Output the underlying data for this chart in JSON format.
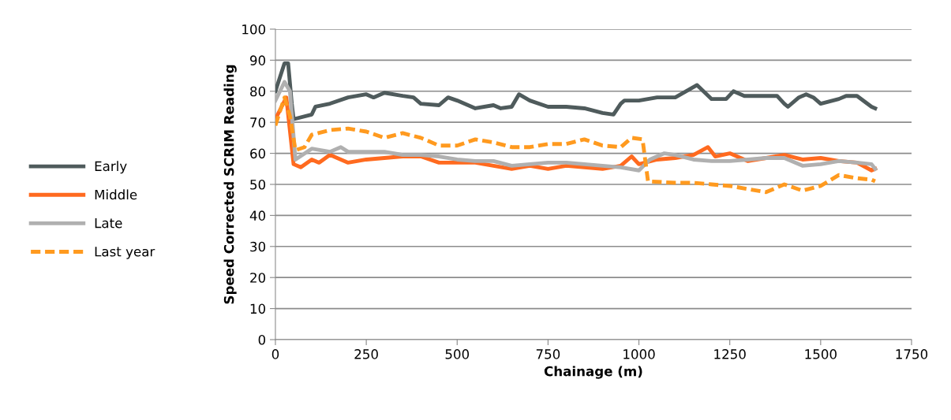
{
  "chart_data": {
    "type": "line",
    "xlabel": "Chainage (m)",
    "ylabel": "Speed Corrected SCRIM Reading",
    "xlim": [
      0,
      1750
    ],
    "xticks": [
      0,
      250,
      500,
      750,
      1000,
      1250,
      1500,
      1750
    ],
    "ylim": [
      0,
      100
    ],
    "yticks": [
      0,
      10,
      20,
      30,
      40,
      50,
      60,
      70,
      80,
      90,
      100
    ],
    "grid": "y",
    "legend": "left",
    "marker": "none",
    "series": [
      {
        "name": "Early",
        "color": "#4f5b5c",
        "line_style": "solid",
        "x": [
          0,
          25,
          35,
          45,
          50,
          100,
          110,
          150,
          200,
          250,
          270,
          300,
          350,
          380,
          400,
          450,
          475,
          500,
          550,
          600,
          620,
          650,
          670,
          700,
          750,
          800,
          850,
          900,
          930,
          950,
          960,
          1000,
          1050,
          1080,
          1100,
          1160,
          1200,
          1240,
          1260,
          1290,
          1380,
          1400,
          1410,
          1440,
          1460,
          1480,
          1500,
          1550,
          1570,
          1600,
          1640,
          1650
        ],
        "values": [
          80,
          89,
          89,
          76,
          71,
          72.5,
          75,
          76,
          78,
          79,
          78,
          79.5,
          78.5,
          78,
          76,
          75.5,
          78,
          77,
          74.5,
          75.5,
          74.5,
          75,
          79,
          77,
          75,
          75,
          74.5,
          73,
          72.5,
          76,
          77,
          77,
          78,
          78,
          78,
          82,
          77.5,
          77.5,
          80,
          78.5,
          78.5,
          76,
          75,
          78,
          79,
          78,
          76,
          77.5,
          78.5,
          78.5,
          75,
          74.5
        ]
      },
      {
        "name": "Middle",
        "color": "#ff6a1f",
        "line_style": "solid",
        "x": [
          0,
          30,
          50,
          70,
          100,
          120,
          150,
          200,
          250,
          300,
          350,
          400,
          450,
          500,
          550,
          600,
          650,
          700,
          750,
          800,
          850,
          900,
          950,
          980,
          1000,
          1050,
          1100,
          1150,
          1190,
          1210,
          1250,
          1300,
          1350,
          1400,
          1450,
          1500,
          1550,
          1600,
          1640,
          1650
        ],
        "values": [
          71,
          78,
          56.5,
          55.5,
          58,
          57,
          59.5,
          57,
          58,
          58.5,
          59,
          59,
          57,
          57,
          57,
          56,
          55,
          56,
          55,
          56,
          55.5,
          55,
          56,
          59,
          56.5,
          58,
          58.5,
          59.5,
          62,
          59,
          60,
          57.5,
          58.5,
          59.5,
          58,
          58.5,
          57.5,
          57,
          54.5,
          55
        ]
      },
      {
        "name": "Late",
        "color": "#b0b0b0",
        "line_style": "solid",
        "x": [
          0,
          25,
          40,
          55,
          100,
          150,
          180,
          200,
          250,
          300,
          350,
          400,
          450,
          500,
          550,
          600,
          650,
          700,
          750,
          800,
          850,
          900,
          950,
          1000,
          1030,
          1070,
          1100,
          1150,
          1200,
          1250,
          1300,
          1350,
          1400,
          1450,
          1500,
          1550,
          1600,
          1640,
          1650
        ],
        "values": [
          77,
          83,
          80,
          58,
          61.5,
          60.5,
          62,
          60.5,
          60.5,
          60.5,
          59.5,
          59.5,
          59,
          58,
          57.5,
          57.5,
          56,
          56.5,
          57,
          57,
          56.5,
          56,
          55.5,
          54.5,
          58,
          60,
          59.5,
          58,
          57.5,
          57.5,
          58,
          58.5,
          58.5,
          56,
          56.5,
          57.5,
          57,
          56.5,
          55
        ]
      },
      {
        "name": "Last year",
        "color": "#ff9a1f",
        "line_style": "dashed",
        "x": [
          0,
          25,
          40,
          55,
          80,
          100,
          150,
          200,
          250,
          300,
          350,
          400,
          450,
          500,
          550,
          600,
          650,
          700,
          750,
          800,
          850,
          900,
          950,
          980,
          1010,
          1025,
          1100,
          1150,
          1200,
          1250,
          1300,
          1350,
          1400,
          1450,
          1500,
          1550,
          1600,
          1640,
          1650
        ],
        "values": [
          69,
          78,
          72,
          61,
          62,
          66,
          67.5,
          68,
          67,
          65,
          66.5,
          65,
          62.5,
          62.5,
          64.5,
          63.5,
          62,
          62,
          63,
          63,
          64.5,
          62.5,
          62,
          65,
          64.5,
          51,
          50.5,
          50.5,
          50,
          49.5,
          48.5,
          47.5,
          50,
          48,
          49.5,
          53,
          52,
          51.5,
          51
        ]
      }
    ]
  }
}
